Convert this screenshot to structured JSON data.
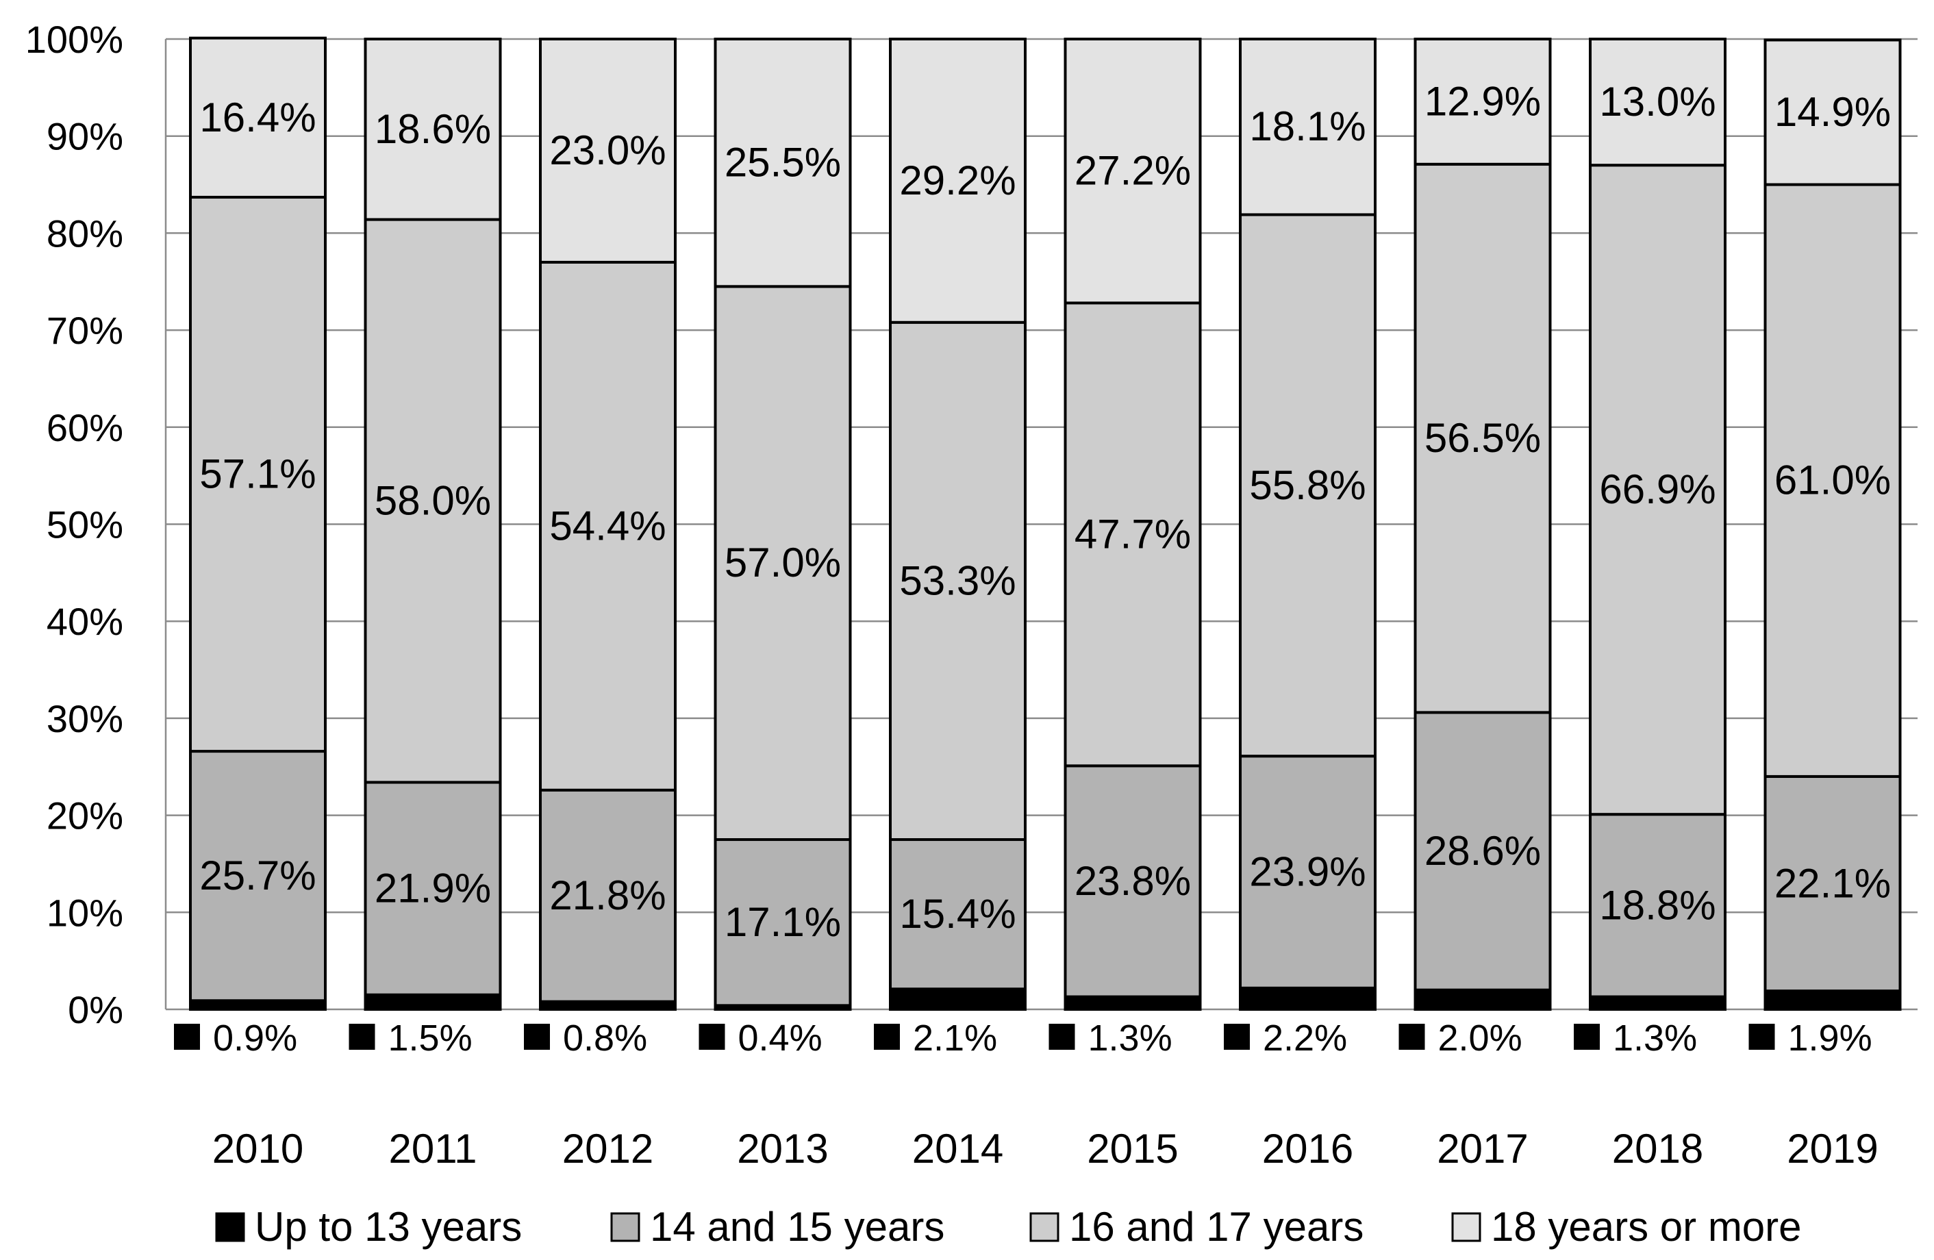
{
  "chart_data": {
    "type": "bar",
    "stacked": true,
    "percent": true,
    "categories": [
      "2010",
      "2011",
      "2012",
      "2013",
      "2014",
      "2015",
      "2016",
      "2017",
      "2018",
      "2019"
    ],
    "series": [
      {
        "name": "Up to 13 years",
        "color": "#000000",
        "values": [
          0.9,
          1.5,
          0.8,
          0.4,
          2.1,
          1.3,
          2.2,
          2.0,
          1.3,
          1.9
        ],
        "labels": [
          "0.9%",
          "1.5%",
          "0.8%",
          "0.4%",
          "2.1%",
          "1.3%",
          "2.2%",
          "2.0%",
          "1.3%",
          "1.9%"
        ]
      },
      {
        "name": "14 and 15 years",
        "color": "#b3b3b3",
        "values": [
          25.7,
          21.9,
          21.8,
          17.1,
          15.4,
          23.8,
          23.9,
          28.6,
          18.8,
          22.1
        ],
        "labels": [
          "25.7%",
          "21.9%",
          "21.8%",
          "17.1%",
          "15.4%",
          "23.8%",
          "23.9%",
          "28.6%",
          "18.8%",
          "22.1%"
        ]
      },
      {
        "name": "16 and 17 years",
        "color": "#cdcdcd",
        "values": [
          57.1,
          58.0,
          54.4,
          57.0,
          53.3,
          47.7,
          55.8,
          56.5,
          66.9,
          61.0
        ],
        "labels": [
          "57.1%",
          "58.0%",
          "54.4%",
          "57.0%",
          "53.3%",
          "47.7%",
          "55.8%",
          "56.5%",
          "66.9%",
          "61.0%"
        ]
      },
      {
        "name": "18 years or more",
        "color": "#e3e3e3",
        "values": [
          16.4,
          18.6,
          23.0,
          25.5,
          29.2,
          27.2,
          18.1,
          12.9,
          13.0,
          14.9
        ],
        "labels": [
          "16.4%",
          "18.6%",
          "23.0%",
          "25.5%",
          "29.2%",
          "27.2%",
          "18.1%",
          "12.9%",
          "13.0%",
          "14.9%"
        ]
      }
    ],
    "y_ticks": [
      "0%",
      "10%",
      "20%",
      "30%",
      "40%",
      "50%",
      "60%",
      "70%",
      "80%",
      "90%",
      "100%"
    ],
    "ylim": [
      0,
      100
    ],
    "grid": true,
    "legend_position": "bottom",
    "title": "",
    "xlabel": "",
    "ylabel": ""
  }
}
